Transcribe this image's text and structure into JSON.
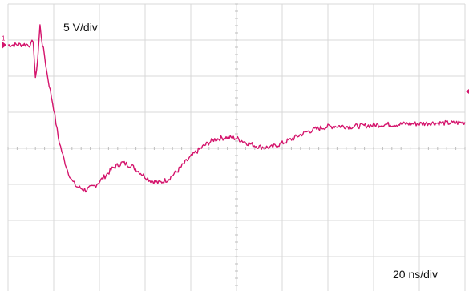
{
  "chart_data": {
    "type": "line",
    "title": "",
    "vertical_scale_label": "5 V/div",
    "horizontal_scale_label": "20 ns/div",
    "channel_marker": "1",
    "grid": true,
    "divisions": {
      "x": 10,
      "y": 8
    },
    "x_unit": "ns",
    "y_unit": "V",
    "xlim": [
      0,
      200
    ],
    "ylim": [
      -20,
      20
    ],
    "series": [
      {
        "color": "#d4146c",
        "x": [
          0,
          8,
          10,
          11,
          12,
          13,
          14,
          15,
          16,
          17,
          18,
          20,
          22,
          24,
          26,
          28,
          30,
          34,
          38,
          42,
          46,
          50,
          54,
          58,
          62,
          66,
          70,
          74,
          78,
          82,
          86,
          90,
          95,
          100,
          105,
          110,
          115,
          120,
          125,
          130,
          135,
          140,
          145,
          150,
          155,
          160,
          165,
          170,
          175,
          180,
          185,
          190,
          195,
          200
        ],
        "y": [
          14.3,
          14.4,
          14.3,
          15.0,
          9.5,
          12.5,
          17.0,
          14.5,
          12.8,
          10.5,
          8.8,
          5.5,
          1.5,
          -1.0,
          -3.0,
          -4.5,
          -5.3,
          -5.8,
          -5.2,
          -4.0,
          -2.7,
          -2.0,
          -2.4,
          -3.4,
          -4.4,
          -4.8,
          -4.3,
          -3.2,
          -1.8,
          -0.6,
          0.4,
          1.2,
          1.5,
          1.4,
          0.7,
          0.2,
          0.1,
          0.7,
          1.4,
          2.2,
          2.7,
          3.0,
          3.1,
          3.0,
          3.1,
          3.2,
          3.3,
          3.3,
          3.4,
          3.4,
          3.5,
          3.5,
          3.5,
          3.6
        ]
      }
    ]
  }
}
